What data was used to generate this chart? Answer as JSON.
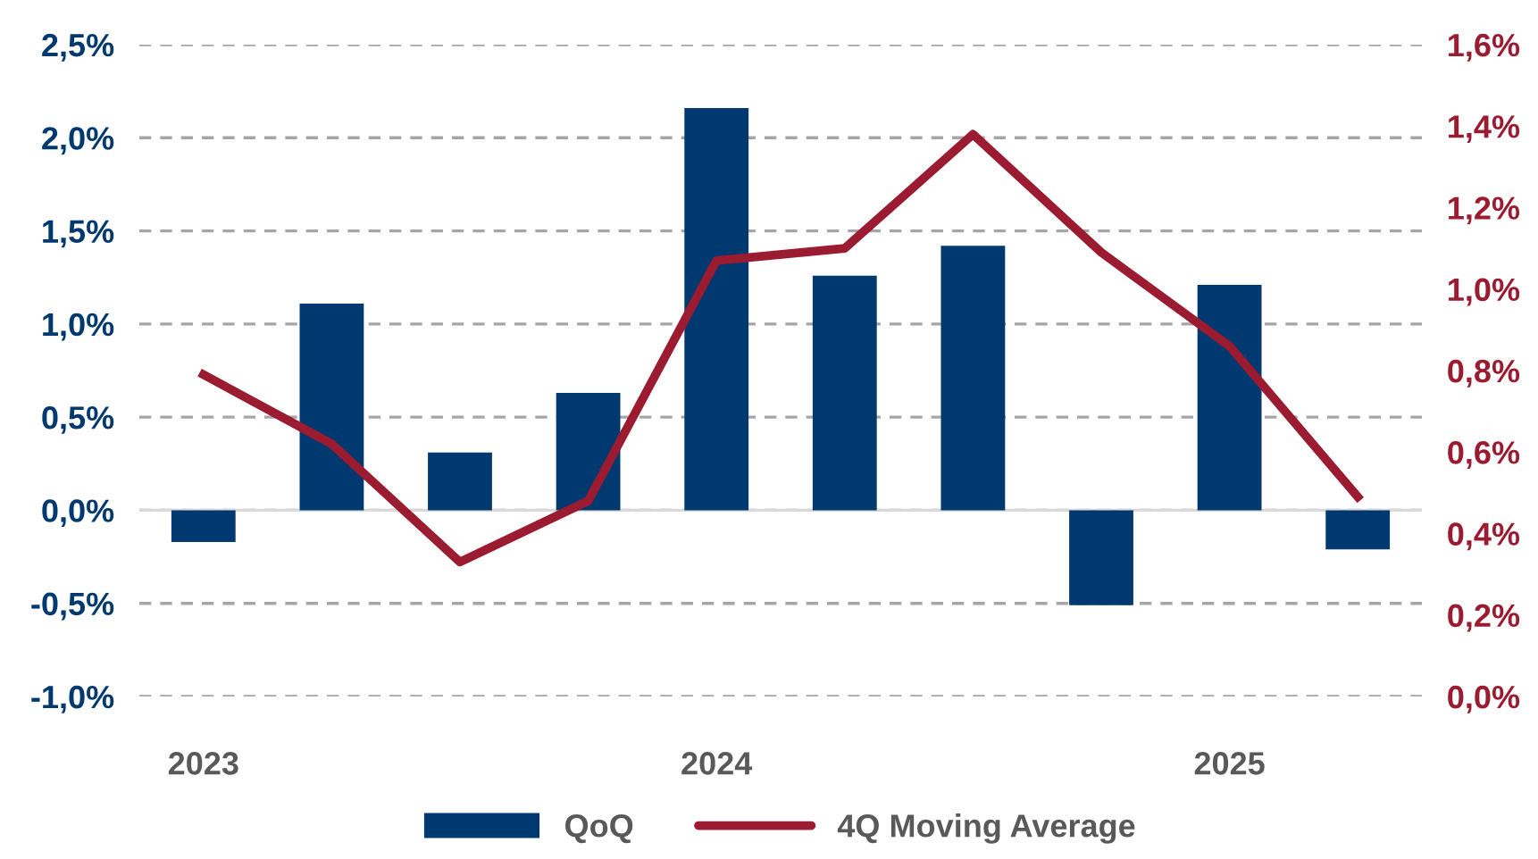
{
  "chart_data": {
    "type": "bar",
    "categories": [
      "2023",
      null,
      null,
      null,
      "2024",
      null,
      null,
      null,
      "2025",
      null
    ],
    "series": [
      {
        "name": "QoQ",
        "color": "#003870",
        "values": [
          -0.17,
          1.11,
          0.31,
          0.63,
          2.16,
          1.26,
          1.42,
          -0.51,
          1.21,
          -0.21
        ]
      },
      {
        "name": "4Q Moving Average",
        "type": "line",
        "axis": "y2",
        "color": "#9b1b30",
        "values": [
          0.79,
          0.62,
          0.33,
          0.48,
          1.07,
          1.1,
          1.38,
          1.09,
          0.86,
          0.49
        ]
      }
    ],
    "ylim": [
      -1.0,
      2.5
    ],
    "yticks": [
      {
        "value": -1.0,
        "label": "-1,0%"
      },
      {
        "value": -0.5,
        "label": "-0,5%"
      },
      {
        "value": 0,
        "label": "0,0%"
      },
      {
        "value": 0.5,
        "label": "0,5%"
      },
      {
        "value": 1.0,
        "label": "1,0%"
      },
      {
        "value": 1.5,
        "label": "1,5%"
      },
      {
        "value": 2.0,
        "label": "2,0%"
      },
      {
        "value": 2.5,
        "label": "2,5%"
      }
    ],
    "y2lim": [
      0,
      1.6
    ],
    "y2ticks": [
      {
        "value": 0,
        "label": "0,0%"
      },
      {
        "value": 0.2,
        "label": "0,2%"
      },
      {
        "value": 0.4,
        "label": "0,4%"
      },
      {
        "value": 0.6,
        "label": "0,6%"
      },
      {
        "value": 0.8,
        "label": "0,8%"
      },
      {
        "value": 1.0,
        "label": "1,0%"
      },
      {
        "value": 1.2,
        "label": "1,2%"
      },
      {
        "value": 1.4,
        "label": "1,4%"
      },
      {
        "value": 1.6,
        "label": "1,6%"
      }
    ],
    "grid": "y",
    "legend": "bottom",
    "marker": "none",
    "line_style": "solid"
  }
}
